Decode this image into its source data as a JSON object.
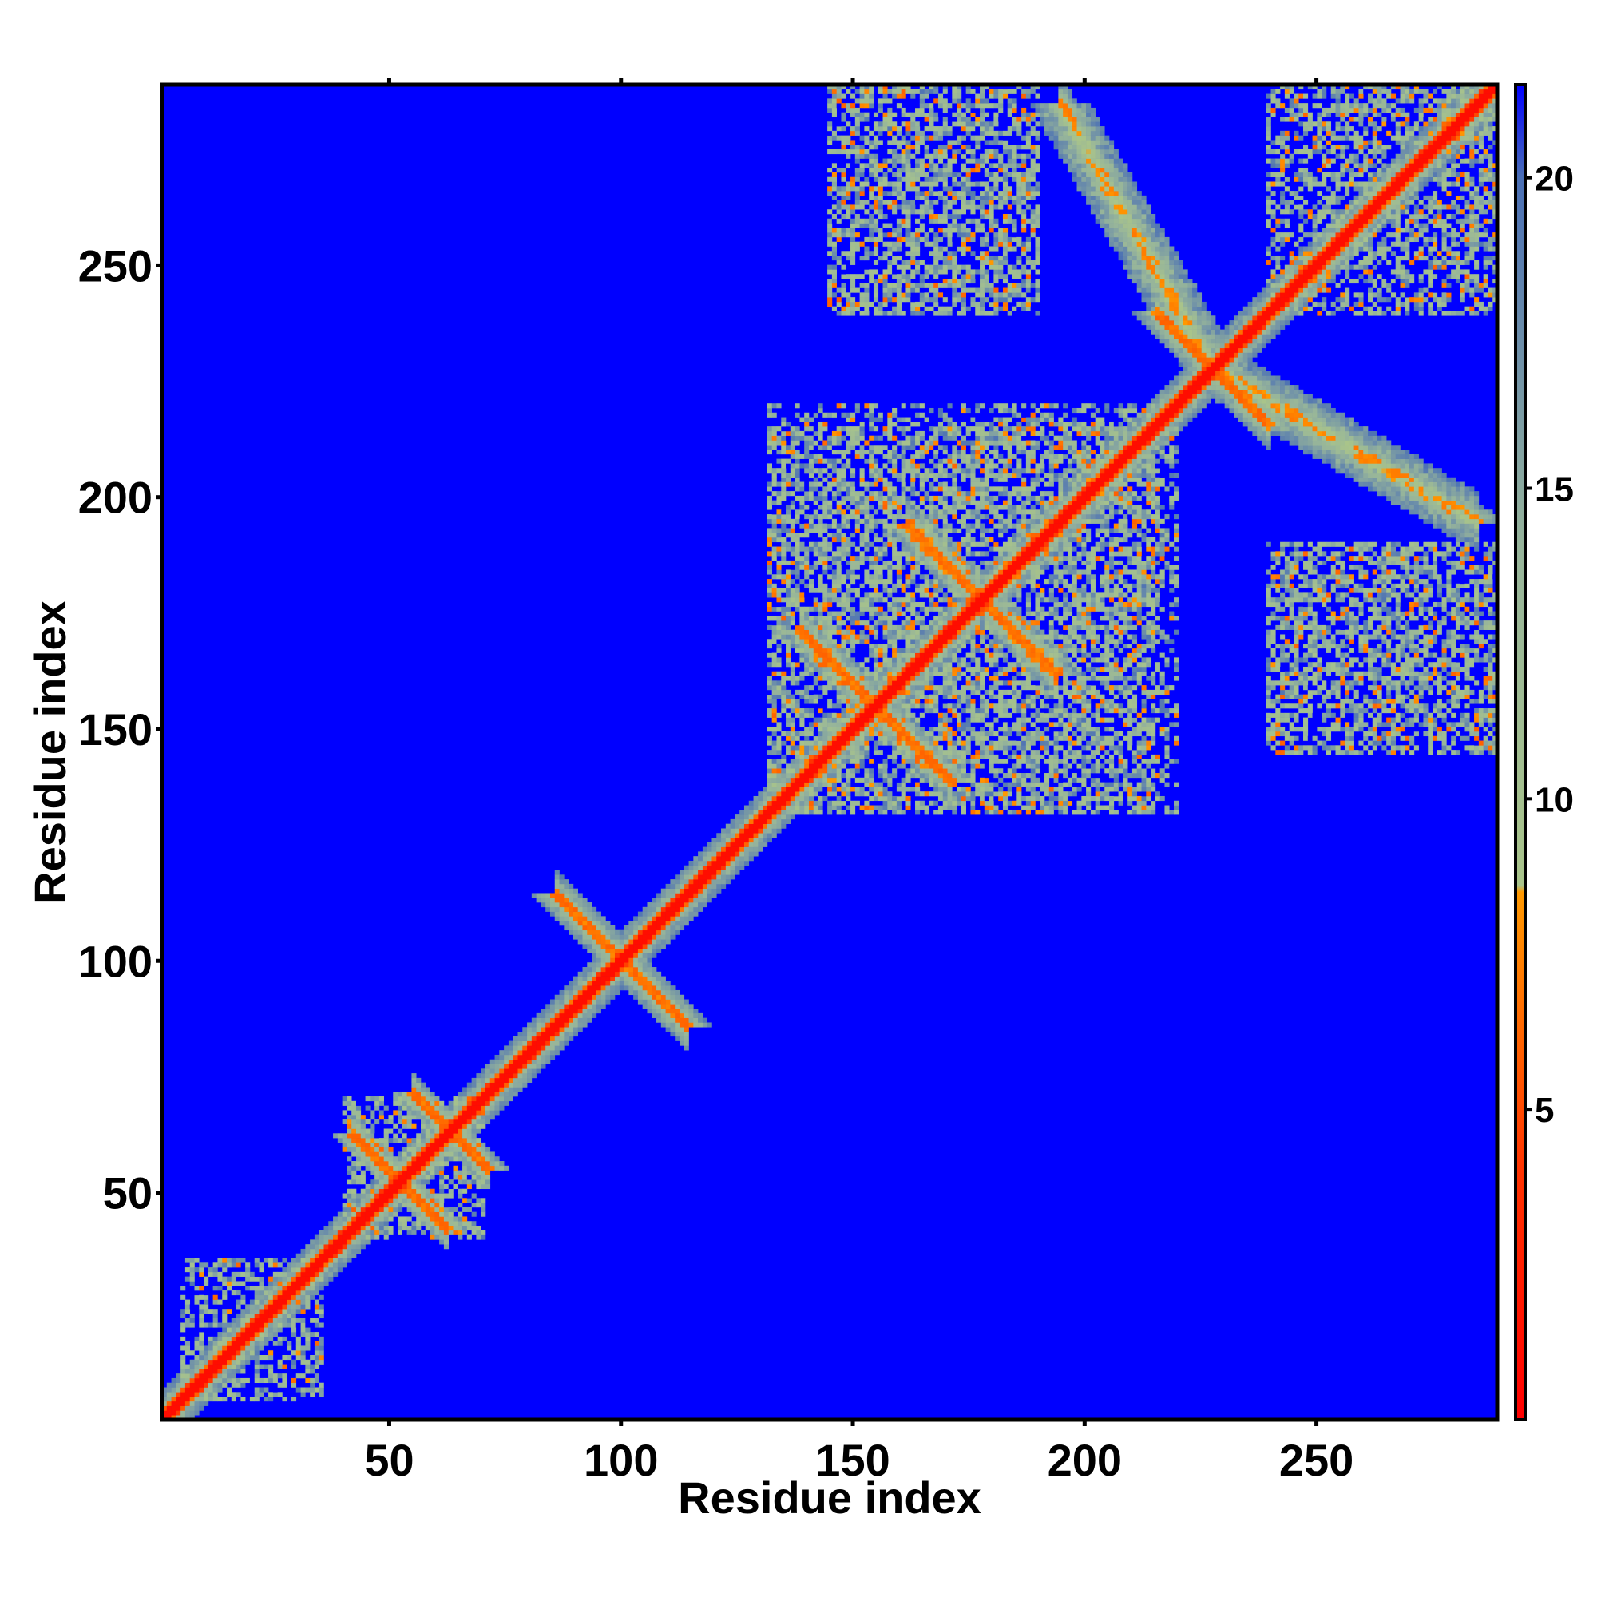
{
  "chart_data": {
    "type": "heatmap",
    "subtype": "residue contact / distance map",
    "title": "",
    "xlabel": "Residue index",
    "ylabel": "Residue index",
    "xlim": [
      1,
      289
    ],
    "ylim": [
      1,
      289
    ],
    "x_ticks": [
      50,
      100,
      150,
      200,
      250
    ],
    "y_ticks": [
      50,
      100,
      150,
      200,
      250
    ],
    "colorbar": {
      "range": [
        0,
        21.5
      ],
      "ticks": [
        5,
        10,
        15,
        20
      ],
      "stops": [
        {
          "value": 0,
          "color": "#ff0000"
        },
        {
          "value": 4,
          "color": "#ff3300"
        },
        {
          "value": 8.5,
          "color": "#ff9900"
        },
        {
          "value": 8.6,
          "color": "#a9c48a"
        },
        {
          "value": 14,
          "color": "#97b59a"
        },
        {
          "value": 20,
          "color": "#4a6fb5"
        },
        {
          "value": 21.5,
          "color": "#0000ff"
        }
      ],
      "background_color": "#0000ff"
    },
    "features": [
      {
        "kind": "diagonal",
        "from": 1,
        "to": 289,
        "width": 3.5
      },
      {
        "kind": "cross",
        "center": [
          52,
          52
        ],
        "arm_length": 10,
        "width": 4
      },
      {
        "kind": "cross",
        "center": [
          63,
          63
        ],
        "arm_length": 8,
        "width": 4
      },
      {
        "kind": "cross",
        "center": [
          100,
          100
        ],
        "arm_length": 14,
        "width": 5
      },
      {
        "kind": "cross",
        "center": [
          155,
          155
        ],
        "arm_length": 16,
        "width": 5
      },
      {
        "kind": "cross",
        "center": [
          178,
          178
        ],
        "arm_length": 16,
        "width": 5
      },
      {
        "kind": "cross",
        "center": [
          228,
          228
        ],
        "arm_length": 12,
        "width": 5
      },
      {
        "kind": "band",
        "from": [
          228,
          228
        ],
        "to": [
          285,
          195
        ],
        "width": 6
      },
      {
        "kind": "band",
        "from": [
          228,
          228
        ],
        "to": [
          195,
          285
        ],
        "width": 6
      },
      {
        "kind": "block",
        "x": [
          132,
          215
        ],
        "y": [
          132,
          220
        ],
        "density": 0.45
      },
      {
        "kind": "block",
        "x": [
          240,
          289
        ],
        "y": [
          145,
          190
        ],
        "density": 0.4
      },
      {
        "kind": "block",
        "x": [
          145,
          190
        ],
        "y": [
          240,
          289
        ],
        "density": 0.4
      },
      {
        "kind": "block",
        "x": [
          240,
          289
        ],
        "y": [
          240,
          289
        ],
        "density": 0.35
      },
      {
        "kind": "block",
        "x": [
          40,
          70
        ],
        "y": [
          40,
          70
        ],
        "density": 0.35
      },
      {
        "kind": "block",
        "x": [
          5,
          35
        ],
        "y": [
          5,
          35
        ],
        "density": 0.3
      }
    ]
  }
}
